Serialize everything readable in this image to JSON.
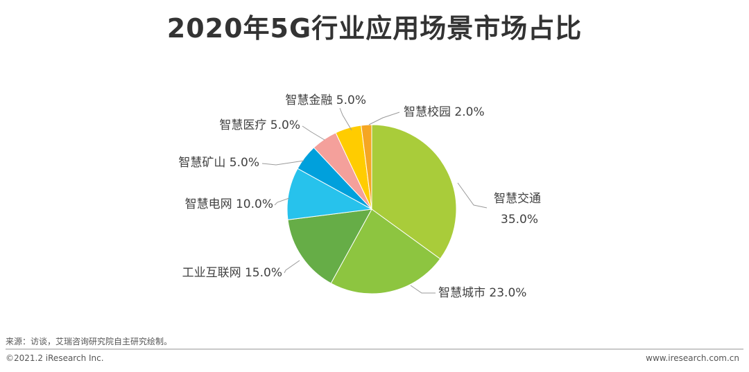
{
  "title": "2020年5G行业应用场景市场占比",
  "footer": {
    "source": "来源：访谈，艾瑞咨询研究院自主研究绘制。",
    "copyright": "©2021.2 iResearch Inc.",
    "website": "www.iresearch.com.cn"
  },
  "chart_data": {
    "type": "pie",
    "title": "2020年5G行业应用场景市场占比",
    "unit": "%",
    "slices": [
      {
        "label": "智慧交通",
        "value": 35.0,
        "value_label": "35.0%",
        "color": "#a9cc3a"
      },
      {
        "label": "智慧城市",
        "value": 23.0,
        "value_label": "23.0%",
        "color": "#8dc540"
      },
      {
        "label": "工业互联网",
        "value": 15.0,
        "value_label": "15.0%",
        "color": "#66ad47"
      },
      {
        "label": "智慧电网",
        "value": 10.0,
        "value_label": "10.0%",
        "color": "#27c2ec"
      },
      {
        "label": "智慧矿山",
        "value": 5.0,
        "value_label": "5.0%",
        "color": "#00a0dc"
      },
      {
        "label": "智慧医疗",
        "value": 5.0,
        "value_label": "5.0%",
        "color": "#f4a09b"
      },
      {
        "label": "智慧金融",
        "value": 5.0,
        "value_label": "5.0%",
        "color": "#ffcc00"
      },
      {
        "label": "智慧校园",
        "value": 2.0,
        "value_label": "2.0%",
        "color": "#f5a623"
      }
    ]
  }
}
